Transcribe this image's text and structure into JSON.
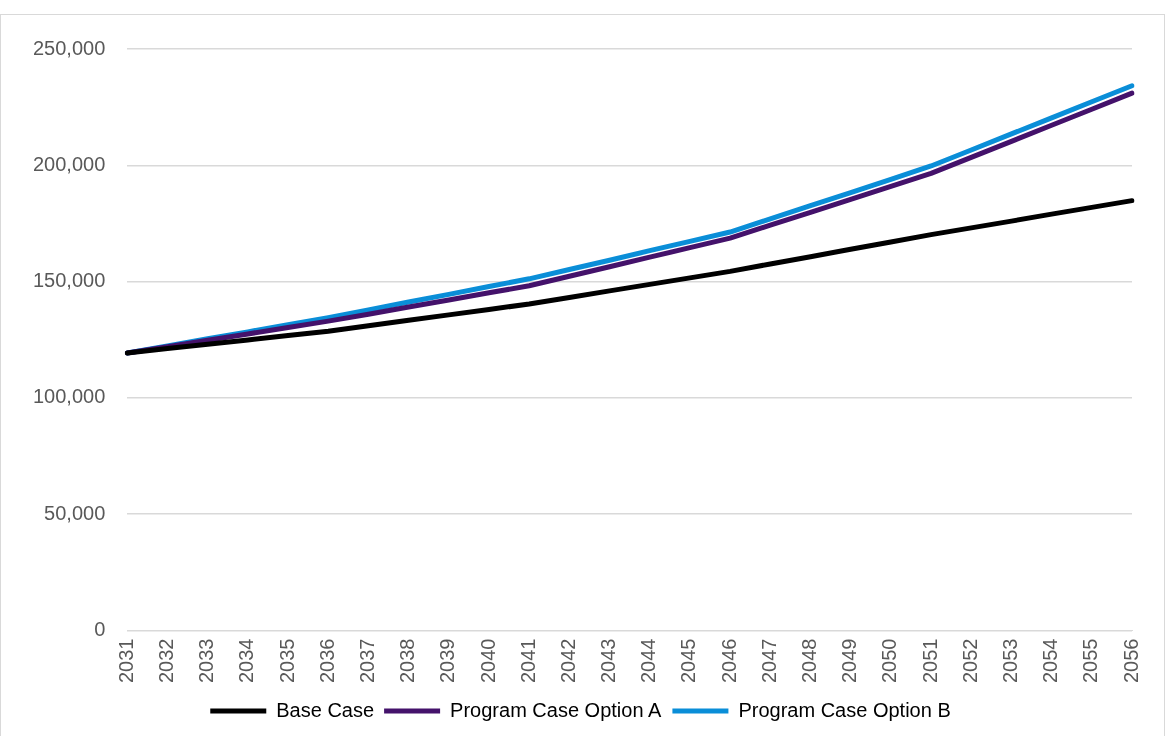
{
  "chart_data": {
    "type": "line",
    "categories": [
      "2031",
      "2032",
      "2033",
      "2034",
      "2035",
      "2036",
      "2037",
      "2038",
      "2039",
      "2040",
      "2041",
      "2042",
      "2043",
      "2044",
      "2045",
      "2046",
      "2047",
      "2048",
      "2049",
      "2050",
      "2051",
      "2052",
      "2053",
      "2054",
      "2055",
      "2056"
    ],
    "series": [
      {
        "name": "Base Case",
        "color": "#000000",
        "values": [
          119300,
          121200,
          123100,
          124900,
          126800,
          128700,
          131000,
          133400,
          135700,
          138000,
          140400,
          143200,
          146000,
          148800,
          151600,
          154400,
          157600,
          160700,
          163900,
          167000,
          170200,
          173100,
          176000,
          179000,
          181900,
          184800
        ]
      },
      {
        "name": "Program Case Option A",
        "color": "#44126b",
        "values": [
          119300,
          122000,
          124800,
          127500,
          130300,
          133000,
          136000,
          139100,
          142100,
          145200,
          148200,
          152300,
          156400,
          160500,
          164600,
          168700,
          174300,
          179800,
          185400,
          190900,
          196500,
          203400,
          210300,
          217200,
          224100,
          231000
        ]
      },
      {
        "name": "Program Case Option B",
        "color": "#0a8ed8",
        "values": [
          119300,
          122300,
          125400,
          128400,
          131500,
          134500,
          137800,
          141200,
          144500,
          147900,
          151200,
          155200,
          159200,
          163300,
          167300,
          171300,
          177000,
          182700,
          188300,
          194000,
          199700,
          206600,
          213500,
          220400,
          227300,
          234200
        ]
      }
    ],
    "ylim": [
      0,
      250000
    ],
    "yticks": [
      {
        "value": 0,
        "label": "0"
      },
      {
        "value": 50000,
        "label": "50,000"
      },
      {
        "value": 100000,
        "label": "100,000"
      },
      {
        "value": 150000,
        "label": "150,000"
      },
      {
        "value": 200000,
        "label": "200,000"
      },
      {
        "value": 250000,
        "label": "250,000"
      }
    ],
    "grid": "y",
    "legend": "bottom",
    "marker": "none",
    "line_style": "solid"
  }
}
